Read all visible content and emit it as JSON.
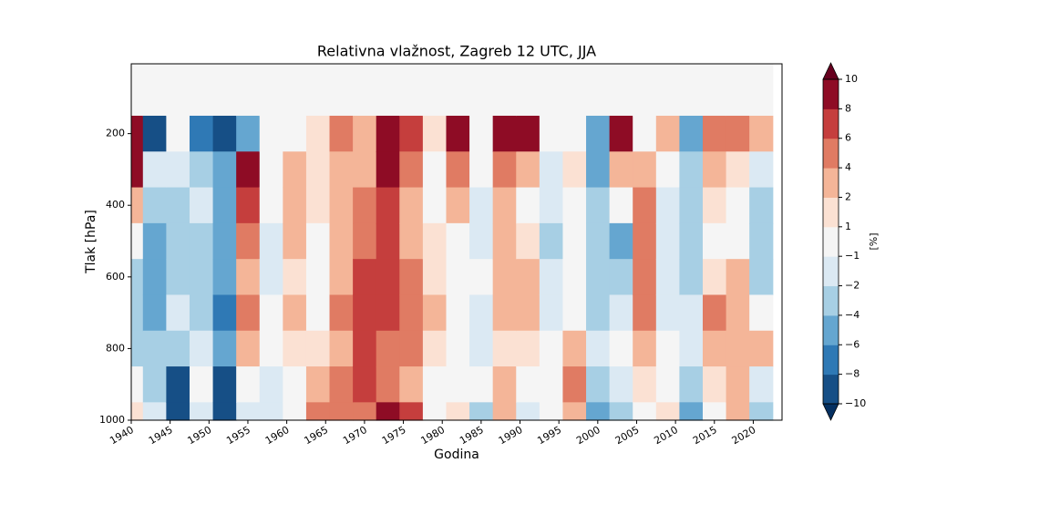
{
  "chart_data": {
    "type": "contourf",
    "title": "Relativna vlažnost, Zagreb 12 UTC, JJA",
    "x_label": "Godina",
    "y_label": "Tlak [hPa]",
    "x": [
      1940,
      1943,
      1946,
      1949,
      1952,
      1955,
      1958,
      1961,
      1964,
      1967,
      1970,
      1973,
      1976,
      1979,
      1982,
      1985,
      1988,
      1991,
      1994,
      1997,
      2000,
      2003,
      2006,
      2009,
      2012,
      2015,
      2018,
      2021
    ],
    "y": [
      100,
      200,
      300,
      400,
      500,
      600,
      700,
      800,
      900,
      1000
    ],
    "z": [
      [
        0,
        9,
        9,
        3,
        0,
        -3,
        -4,
        -3,
        0,
        1
      ],
      [
        0,
        -9,
        -2,
        -3,
        -5,
        -6,
        -5,
        -4,
        -3,
        -2
      ],
      [
        0,
        -1,
        -2,
        -4,
        -4,
        -3,
        -2,
        -3,
        -9,
        -10
      ],
      [
        0,
        -7,
        -3,
        -2,
        -4,
        -4,
        -3,
        -2,
        -1,
        -2
      ],
      [
        0,
        -9,
        -5,
        -5,
        -6,
        -6,
        -7,
        -6,
        -9,
        -10
      ],
      [
        0,
        -5,
        8,
        6,
        4,
        2,
        4,
        2,
        -1,
        -2
      ],
      [
        0,
        0,
        -1,
        -1,
        -2,
        -2,
        -1,
        0,
        -2,
        -2
      ],
      [
        0,
        0,
        2,
        3,
        2,
        1,
        2,
        1,
        -1,
        0
      ],
      [
        0,
        1,
        1,
        1,
        0,
        0,
        0,
        1,
        2,
        4
      ],
      [
        0,
        4,
        3,
        2,
        2,
        3,
        4,
        3,
        4,
        5
      ],
      [
        0,
        3,
        3,
        5,
        5,
        6,
        6,
        7,
        6,
        4
      ],
      [
        0,
        8,
        9,
        7,
        6,
        6,
        6,
        5,
        4,
        8
      ],
      [
        0,
        6,
        4,
        3,
        3,
        4,
        4,
        4,
        3,
        6
      ],
      [
        0,
        1,
        0,
        0,
        1,
        1,
        2,
        1,
        0,
        -1
      ],
      [
        0,
        8,
        5,
        2,
        0,
        0,
        -1,
        -1,
        0,
        1
      ],
      [
        0,
        0,
        -1,
        -2,
        -2,
        -1,
        -2,
        -2,
        -1,
        -3
      ],
      [
        0,
        8,
        4,
        2,
        2,
        3,
        2,
        1,
        2,
        3
      ],
      [
        0,
        8,
        2,
        0,
        1,
        2,
        2,
        1,
        -1,
        -2
      ],
      [
        0,
        -1,
        -2,
        -2,
        -3,
        -2,
        -2,
        -1,
        0,
        -1
      ],
      [
        0,
        0,
        1,
        0,
        -1,
        -1,
        0,
        3,
        4,
        3
      ],
      [
        0,
        -6,
        -5,
        -4,
        -3,
        -4,
        -3,
        -2,
        -3,
        -5
      ],
      [
        0,
        9,
        2,
        -1,
        -5,
        -3,
        -2,
        -1,
        -2,
        -3
      ],
      [
        0,
        0,
        3,
        5,
        5,
        4,
        4,
        3,
        1,
        -1
      ],
      [
        0,
        3,
        -1,
        -2,
        -2,
        -2,
        -2,
        -1,
        0,
        1
      ],
      [
        0,
        -5,
        -4,
        -3,
        -3,
        -3,
        -2,
        -2,
        -4,
        -6
      ],
      [
        0,
        4,
        2,
        1,
        0,
        1,
        5,
        3,
        1,
        -1
      ],
      [
        0,
        5,
        1,
        0,
        0,
        2,
        2,
        3,
        2,
        2
      ],
      [
        0,
        3,
        -2,
        -4,
        -3,
        -3,
        0,
        2,
        -2,
        -3
      ]
    ],
    "xlim": [
      1940,
      2023.7
    ],
    "ylim": [
      1000,
      5
    ],
    "xticks": [
      1940,
      1945,
      1950,
      1955,
      1960,
      1965,
      1970,
      1975,
      1980,
      1985,
      1990,
      1995,
      2000,
      2005,
      2010,
      2015,
      2020
    ],
    "yticks": [
      200,
      400,
      600,
      800,
      1000
    ],
    "levels": [
      -10,
      -8,
      -6,
      -4,
      -2,
      -1,
      1,
      2,
      4,
      6,
      8,
      10
    ],
    "colors": [
      "#053061",
      "#164f86",
      "#2f79b5",
      "#65a6d0",
      "#a7cfe4",
      "#dbe9f3",
      "#f5f5f5",
      "#fbe1d3",
      "#f4b598",
      "#e07b63",
      "#c53e3d",
      "#8e0c25",
      "#67001f"
    ],
    "colorbar": {
      "label": "[%]",
      "ticks": [
        {
          "value": -10,
          "label": "−10"
        },
        {
          "value": -8,
          "label": "−8"
        },
        {
          "value": -6,
          "label": "−6"
        },
        {
          "value": -4,
          "label": "−4"
        },
        {
          "value": -2,
          "label": "−2"
        },
        {
          "value": -1,
          "label": "−1"
        },
        1,
        2,
        4,
        6,
        8,
        10
      ]
    }
  }
}
